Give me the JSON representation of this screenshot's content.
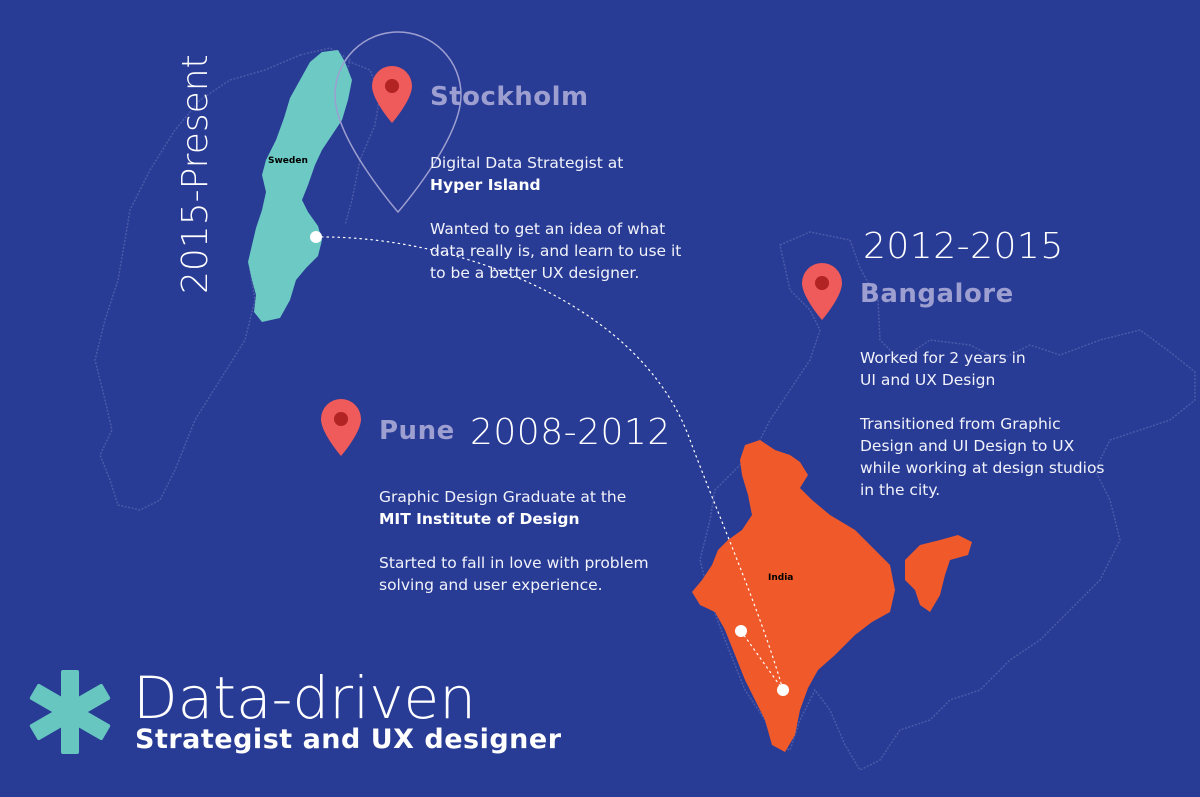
{
  "colors": {
    "background": "#283b95",
    "sweden": "#6cc9c4",
    "india": "#f05a2b",
    "pin": "#ef5a5a",
    "pin_dot": "#b22323",
    "outline": "#4b5ba8",
    "accent_asterisk": "#67c6c0"
  },
  "regions": [
    {
      "name": "Sweden",
      "label": "Sweden"
    },
    {
      "name": "India",
      "label": "India"
    }
  ],
  "stockholm": {
    "city": "Stockholm",
    "period": "2015-Present",
    "role_line": "Digital Data Strategist at",
    "org": "Hyper Island",
    "note_lines": [
      "Wanted to get an idea of what",
      "data really is, and learn to use it",
      "to be a better UX designer."
    ]
  },
  "bangalore": {
    "city": "Bangalore",
    "period": "2012-2015",
    "lines_a": [
      "Worked for 2 years in",
      "UI and UX Design"
    ],
    "lines_b": [
      "Transitioned from Graphic",
      "Design and UI Design to UX",
      "while working at design studios",
      "in the city."
    ]
  },
  "pune": {
    "city": "Pune",
    "period": "2008-2012",
    "role_line": "Graphic Design Graduate at the",
    "org": "MIT Institute of Design",
    "note_lines": [
      "Started to fall in love with problem",
      "solving and user experience."
    ]
  },
  "footer": {
    "headline": "Data-driven",
    "subtitle": "Strategist and UX designer",
    "icon": "asterisk-icon"
  }
}
